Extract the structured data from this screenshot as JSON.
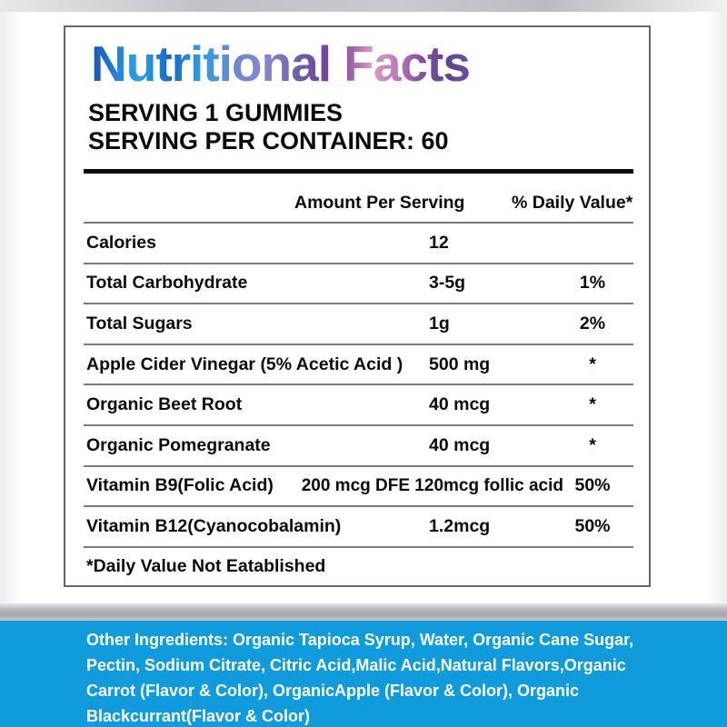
{
  "label": {
    "title": "Nutritional Facts",
    "serving_line1": "SERVING 1 GUMMIES",
    "serving_line2": "SERVING PER CONTAINER: 60",
    "columns": {
      "amount": "Amount Per Serving",
      "daily_value": "% Daily Value*"
    },
    "rows": [
      {
        "name": "Calories",
        "amount": "12",
        "dv": ""
      },
      {
        "name": "Total Carbohydrate",
        "amount": "3-5g",
        "dv": "1%"
      },
      {
        "name": "Total Sugars",
        "amount": "1g",
        "dv": "2%"
      },
      {
        "name": "Apple Cider Vinegar (5% Acetic Acid )",
        "amount": "500 mg",
        "dv": "*"
      },
      {
        "name": "Organic Beet Root",
        "amount": "40 mcg",
        "dv": "*"
      },
      {
        "name": "Organic Pomegranate",
        "amount": "40 mcg",
        "dv": "*"
      },
      {
        "name": "Vitamin B9(Folic Acid)",
        "amount": "200 mcg DFE 120mcg follic acid",
        "dv": "50%"
      },
      {
        "name": "Vitamin B12(Cyanocobalamin)",
        "amount": "1.2mcg",
        "dv": "50%"
      }
    ],
    "footnote": "*Daily Value Not Eatablished"
  },
  "ingredients": {
    "text": "Other Ingredients: Organic Tapioca Syrup, Water, Organic Cane Sugar,\nPectin, Sodium Citrate, Citric Acid,Malic Acid,Natural Flavors,Organic\nCarrot (Flavor & Color), OrganicApple (Flavor & Color), Organic\nBlackcurrant(Flavor & Color)"
  },
  "colors": {
    "band_blue": "#0f9bdc",
    "title_blue_dark": "#1d4fb2",
    "title_blue": "#27a2ec",
    "title_periwinkle": "#6f87cf",
    "title_purple": "#7d3a99",
    "title_pink": "#d89cca",
    "title_deep_purple": "#5e4392"
  }
}
